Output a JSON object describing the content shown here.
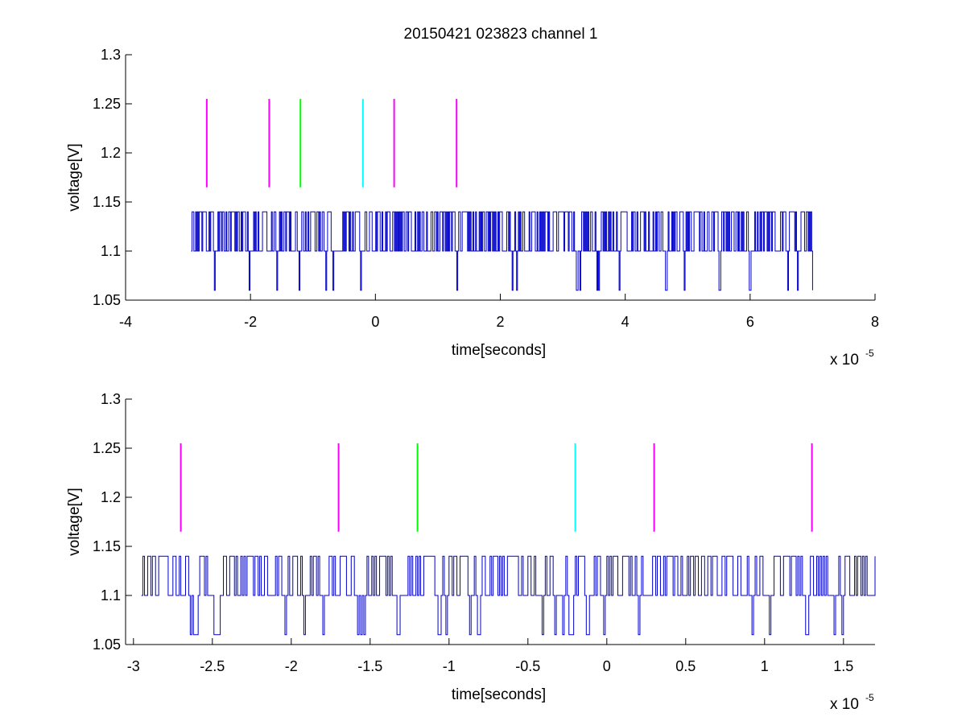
{
  "figure_title": "20150421 023823 channel 1",
  "colors": {
    "signal": "#0000cc",
    "magenta": "#ff00ff",
    "green": "#00ff00",
    "cyan": "#00ffff",
    "axes": "#000000"
  },
  "chart_data": [
    {
      "type": "line",
      "title": "20150421 023823 channel 1",
      "xlabel": "time[seconds]",
      "ylabel": "voltage[V]",
      "x_multiplier_label": "x 10",
      "x_multiplier_exponent": "-5",
      "xlim": [
        -4,
        8
      ],
      "ylim": [
        1.05,
        1.3
      ],
      "xticks": [
        -4,
        -2,
        0,
        2,
        4,
        6,
        8
      ],
      "xtick_labels": [
        "-4",
        "-2",
        "0",
        "2",
        "4",
        "6",
        "8"
      ],
      "yticks": [
        1.05,
        1.1,
        1.15,
        1.2,
        1.25,
        1.3
      ],
      "ytick_labels": [
        "1.05",
        "1.1",
        "1.15",
        "1.2",
        "1.25",
        "1.3"
      ],
      "grid": false,
      "series": [
        {
          "x_range": [
            -2.95,
            7.0
          ],
          "levels": [
            1.06,
            1.1,
            1.14
          ],
          "baseline": 1.1
        }
      ],
      "markers": [
        {
          "x": -2.7,
          "y_range": [
            1.165,
            1.255
          ],
          "color": "magenta"
        },
        {
          "x": -1.7,
          "y_range": [
            1.165,
            1.255
          ],
          "color": "magenta"
        },
        {
          "x": -1.2,
          "y_range": [
            1.165,
            1.255
          ],
          "color": "green"
        },
        {
          "x": -0.2,
          "y_range": [
            1.165,
            1.255
          ],
          "color": "cyan"
        },
        {
          "x": 0.3,
          "y_range": [
            1.165,
            1.255
          ],
          "color": "magenta"
        },
        {
          "x": 1.3,
          "y_range": [
            1.165,
            1.255
          ],
          "color": "magenta"
        }
      ]
    },
    {
      "type": "line",
      "title": "",
      "xlabel": "time[seconds]",
      "ylabel": "voltage[V]",
      "x_multiplier_label": "x 10",
      "x_multiplier_exponent": "-5",
      "xlim": [
        -3.05,
        1.7
      ],
      "ylim": [
        1.05,
        1.3
      ],
      "xticks": [
        -3,
        -2.5,
        -2,
        -1.5,
        -1,
        -0.5,
        0,
        0.5,
        1,
        1.5
      ],
      "xtick_labels": [
        "-3",
        "-2.5",
        "-2",
        "-1.5",
        "-1",
        "-0.5",
        "0",
        "0.5",
        "1",
        "1.5"
      ],
      "yticks": [
        1.05,
        1.1,
        1.15,
        1.2,
        1.25,
        1.3
      ],
      "ytick_labels": [
        "1.05",
        "1.1",
        "1.15",
        "1.2",
        "1.25",
        "1.3"
      ],
      "grid": false,
      "series": [
        {
          "x_range": [
            -2.95,
            1.7
          ],
          "levels": [
            1.06,
            1.1,
            1.14
          ],
          "baseline": 1.1
        }
      ],
      "markers": [
        {
          "x": -2.7,
          "y_range": [
            1.165,
            1.255
          ],
          "color": "magenta"
        },
        {
          "x": -1.7,
          "y_range": [
            1.165,
            1.255
          ],
          "color": "magenta"
        },
        {
          "x": -1.2,
          "y_range": [
            1.165,
            1.255
          ],
          "color": "green"
        },
        {
          "x": -0.2,
          "y_range": [
            1.165,
            1.255
          ],
          "color": "cyan"
        },
        {
          "x": 0.3,
          "y_range": [
            1.165,
            1.255
          ],
          "color": "magenta"
        },
        {
          "x": 1.3,
          "y_range": [
            1.165,
            1.255
          ],
          "color": "magenta"
        }
      ]
    }
  ]
}
